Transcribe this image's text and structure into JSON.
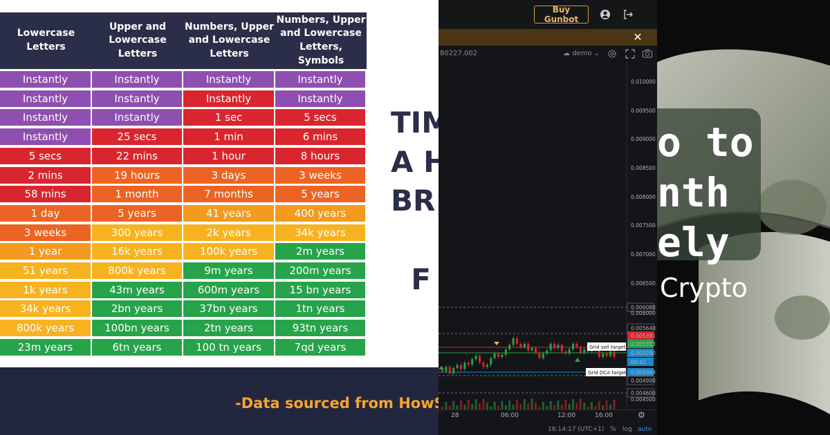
{
  "table": {
    "headers": [
      "Lowercase\nLetters",
      "Upper and\nLowercase Letters",
      "Numbers, Upper\nand Lowercase\nLetters",
      "Numbers, Upper\nand Lowercase\nLetters, Symbols"
    ],
    "rows": [
      [
        "Instantly",
        "Instantly",
        "Instantly",
        "Instantly"
      ],
      [
        "Instantly",
        "Instantly",
        "Instantly",
        "Instantly"
      ],
      [
        "Instantly",
        "Instantly",
        "1 sec",
        "5 secs"
      ],
      [
        "Instantly",
        "25 secs",
        "1 min",
        "6 mins"
      ],
      [
        "5 secs",
        "22 mins",
        "1 hour",
        "8 hours"
      ],
      [
        "2 mins",
        "19 hours",
        "3 days",
        "3 weeks"
      ],
      [
        "58 mins",
        "1 month",
        "7 months",
        "5 years"
      ],
      [
        "1 day",
        "5 years",
        "41 years",
        "400 years"
      ],
      [
        "3 weeks",
        "300 years",
        "2k years",
        "34k years"
      ],
      [
        "1 year",
        "16k years",
        "100k years",
        "2m years"
      ],
      [
        "51 years",
        "800k years",
        "9m years",
        "200m years"
      ],
      [
        "1k years",
        "43m years",
        "600m years",
        "15 bn years"
      ],
      [
        "34k years",
        "2bn years",
        "37bn years",
        "1tn years"
      ],
      [
        "800k years",
        "100bn years",
        "2tn years",
        "93tn years"
      ],
      [
        "23m years",
        "6tn years",
        "100 tn years",
        "7qd years"
      ]
    ],
    "colors": [
      [
        "#8e4fb0",
        "#8e4fb0",
        "#8e4fb0",
        "#8e4fb0"
      ],
      [
        "#8e4fb0",
        "#8e4fb0",
        "#d9262e",
        "#8e4fb0"
      ],
      [
        "#8e4fb0",
        "#8e4fb0",
        "#d9262e",
        "#d9262e"
      ],
      [
        "#8e4fb0",
        "#d9262e",
        "#d9262e",
        "#d9262e"
      ],
      [
        "#d9262e",
        "#d9262e",
        "#d9262e",
        "#d9262e"
      ],
      [
        "#d9262e",
        "#ec6423",
        "#ec6423",
        "#ec6423"
      ],
      [
        "#d9262e",
        "#ec6423",
        "#ec6423",
        "#ec6423"
      ],
      [
        "#ec6423",
        "#ec6423",
        "#f39a1f",
        "#f39a1f"
      ],
      [
        "#ec6423",
        "#f7b21f",
        "#f7b21f",
        "#f7b21f"
      ],
      [
        "#f39a1f",
        "#f7b21f",
        "#f7b21f",
        "#27a34a"
      ],
      [
        "#f7b21f",
        "#f7b21f",
        "#27a34a",
        "#27a34a"
      ],
      [
        "#f7b21f",
        "#27a34a",
        "#27a34a",
        "#27a34a"
      ],
      [
        "#f7b21f",
        "#27a34a",
        "#27a34a",
        "#27a34a"
      ],
      [
        "#f7b21f",
        "#27a34a",
        "#27a34a",
        "#27a34a"
      ],
      [
        "#27a34a",
        "#27a34a",
        "#27a34a",
        "#27a34a"
      ]
    ]
  },
  "left_big_text": "TIM\nA H\nBR\n\n  F",
  "footnote": "-Data sourced from HowSe",
  "trading": {
    "buy_label": "Buy Gunbot",
    "ticker_value": "80227.002",
    "mode_label": "demo",
    "price_levels": [
      "0.010000",
      "0.009500",
      "0.009000",
      "0.008500",
      "0.008000",
      "0.007500",
      "0.007000",
      "0.006500",
      "0.006080",
      "0.006000",
      "0.005640",
      "0.005391",
      "0.005353",
      "0.005290",
      "00:42",
      "0.004949",
      "0.004900",
      "0.004600",
      "0.004500"
    ],
    "grid_sell_label": "Grid sell target",
    "grid_dca_label": "Grid DCA target",
    "time_labels": [
      "28",
      "06:00",
      "12:00",
      "16:00"
    ],
    "clock": "16:14:17 (UTC+1)",
    "pct_label": "%",
    "log_label": "log",
    "auto_label": "auto"
  },
  "photo": {
    "headline": "o to\nnth\nely",
    "subtitle": "Crypto"
  },
  "colors": {
    "accent": "#d3a04b",
    "sell": "#d9262e",
    "buy": "#26a69a",
    "dca": "#1e88c9"
  }
}
